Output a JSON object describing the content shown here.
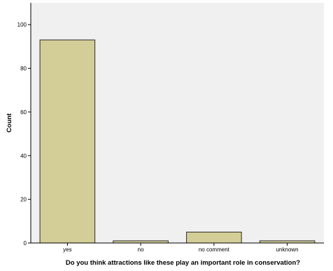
{
  "chart_data": {
    "type": "bar",
    "title": "",
    "xlabel": "Do you think attractions like these play an important role in conservation?",
    "ylabel": "Count",
    "categories": [
      "yes",
      "no",
      "no comment",
      "unknown"
    ],
    "values": [
      93,
      1,
      5,
      1
    ],
    "ylim": [
      0,
      110
    ],
    "yticks": [
      0,
      20,
      40,
      60,
      80,
      100
    ],
    "grid": false,
    "legend": "none",
    "colors": {
      "background": "#ffffff",
      "plot_background": "#f0f0f0",
      "bar_fill": "#d3ce97",
      "bar_stroke": "#2b2b2b",
      "axis": "#000000"
    }
  }
}
